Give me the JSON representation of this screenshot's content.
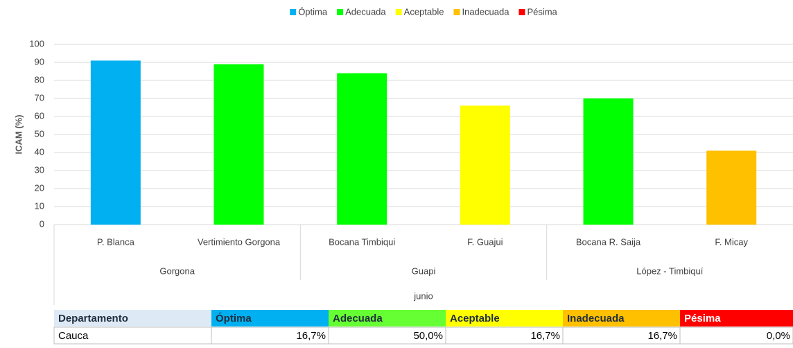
{
  "chart_data": {
    "type": "bar",
    "legend": [
      {
        "name": "Óptima",
        "color": "#00b0f0"
      },
      {
        "name": "Adecuada",
        "color": "#00ff00"
      },
      {
        "name": "Aceptable",
        "color": "#ffff00"
      },
      {
        "name": "Inadecuada",
        "color": "#ffc000"
      },
      {
        "name": "Pésima",
        "color": "#ff0000"
      }
    ],
    "y_label": "ICAM (%)",
    "categories": [
      "P. Blanca",
      "Vertimiento Gorgona",
      "Bocana Timbiqui",
      "F. Guajui",
      "Bocana R. Saija",
      "F. Micay"
    ],
    "values": [
      91,
      89,
      84,
      66,
      70,
      41
    ],
    "colors": [
      "#00b0f0",
      "#00ff00",
      "#00ff00",
      "#ffff00",
      "#00ff00",
      "#ffc000"
    ],
    "groups": [
      "Gorgona",
      "Guapi",
      "López - Timbiquí"
    ],
    "period": "junio",
    "ylim": [
      0,
      100
    ],
    "yticks": [
      0,
      10,
      20,
      30,
      40,
      50,
      60,
      70,
      80,
      90,
      100
    ],
    "grid": true
  },
  "table": {
    "header": [
      "Departamento",
      "Óptima",
      "Adecuada",
      "Aceptable",
      "Inadecuada",
      "Pésima"
    ],
    "header_colors": [
      "#dde9f5",
      "#00b0f0",
      "#66ff33",
      "#ffff00",
      "#ffc000",
      "#ff0000"
    ],
    "rows": [
      [
        "Cauca",
        "16,7%",
        "50,0%",
        "16,7%",
        "16,7%",
        "0,0%"
      ]
    ]
  }
}
